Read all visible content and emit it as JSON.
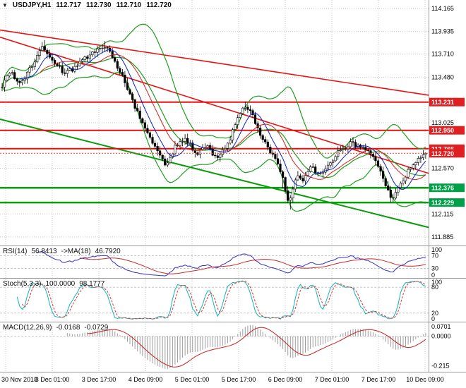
{
  "window": {
    "symbol_period": "USDJPY,H1",
    "ohlc": {
      "open": "112.717",
      "high": "112.730",
      "low": "112.710",
      "close": "112.720"
    }
  },
  "icons": {
    "symbol_dropdown": "▼"
  },
  "colors": {
    "grid": "#c9c9c9",
    "candle_up": "#ffffff",
    "candle_down": "#000000",
    "bollinger": "#1f9d1f",
    "ma_fast": "#0a23c4",
    "ma_slow": "#d02020",
    "trend_red": "#e51414",
    "trend_green": "#089c08",
    "level_red": "#e01010",
    "level_green": "#08a008",
    "current_price": "#f23c3c",
    "axis_box_red": "#e02020",
    "axis_box_green": "#00a048",
    "rsi_line": "#3030cc",
    "rsi_ma": "#cc2929",
    "stoch_k": "#0fb5b5",
    "stoch_d": "#e03030",
    "macd_hist": "#9c9c9c",
    "macd_signal": "#cc1f1f",
    "ind_level": "#c8c8c8",
    "separator": "#9a9a9a",
    "axis_text": "#000000"
  },
  "price_axis": {
    "min": 111.8,
    "max": 114.25,
    "labels": [
      {
        "text": "114.165",
        "price": 114.165,
        "box": null
      },
      {
        "text": "113.935",
        "price": 113.935,
        "box": null
      },
      {
        "text": "113.710",
        "price": 113.71,
        "box": null
      },
      {
        "text": "113.480",
        "price": 113.48,
        "box": null
      },
      {
        "text": "113.231",
        "price": 113.231,
        "box": "red"
      },
      {
        "text": "113.025",
        "price": 113.025,
        "box": null
      },
      {
        "text": "112.950",
        "price": 112.95,
        "box": "red"
      },
      {
        "text": "112.766",
        "price": 112.766,
        "box": "red"
      },
      {
        "text": "112.720",
        "price": 112.72,
        "box": "red"
      },
      {
        "text": "112.570",
        "price": 112.57,
        "box": null
      },
      {
        "text": "112.376",
        "price": 112.376,
        "box": "green"
      },
      {
        "text": "112.229",
        "price": 112.229,
        "box": "green"
      },
      {
        "text": "112.115",
        "price": 112.115,
        "box": null
      },
      {
        "text": "111.885",
        "price": 111.885,
        "box": null
      }
    ]
  },
  "time_axis": {
    "labels": [
      "30 Nov 2018",
      "3 Dec 01:00",
      "3 Dec 17:00",
      "4 Dec 09:00",
      "5 Dec 01:00",
      "5 Dec 17:00",
      "6 Dec 09:00",
      "7 Dec 01:00",
      "7 Dec 17:00",
      "10 Dec 09:00"
    ]
  },
  "chart_data": {
    "type": "candlestick",
    "symbol": "USDJPY",
    "timeframe": "H1",
    "x_range": {
      "start": "30 Nov 2018",
      "end": "10 Dec 09:00",
      "interval": "1 hour"
    },
    "y_range": [
      111.8,
      114.25
    ],
    "candle_count": 170,
    "last_close": 112.72,
    "price_path_anchors": [
      [
        0,
        113.38
      ],
      [
        4,
        113.52
      ],
      [
        8,
        113.42
      ],
      [
        12,
        113.58
      ],
      [
        17,
        113.8
      ],
      [
        21,
        113.62
      ],
      [
        26,
        113.52
      ],
      [
        31,
        113.6
      ],
      [
        36,
        113.72
      ],
      [
        41,
        113.8
      ],
      [
        45,
        113.68
      ],
      [
        49,
        113.46
      ],
      [
        53,
        113.22
      ],
      [
        58,
        112.96
      ],
      [
        62,
        112.78
      ],
      [
        66,
        112.58
      ],
      [
        70,
        112.8
      ],
      [
        74,
        112.86
      ],
      [
        78,
        112.72
      ],
      [
        82,
        112.8
      ],
      [
        86,
        112.68
      ],
      [
        90,
        112.78
      ],
      [
        94,
        113.02
      ],
      [
        97,
        113.18
      ],
      [
        100,
        113.12
      ],
      [
        103,
        112.95
      ],
      [
        106,
        112.8
      ],
      [
        109,
        112.7
      ],
      [
        112,
        112.52
      ],
      [
        115,
        112.22
      ],
      [
        118,
        112.5
      ],
      [
        121,
        112.45
      ],
      [
        124,
        112.58
      ],
      [
        127,
        112.5
      ],
      [
        130,
        112.6
      ],
      [
        133,
        112.68
      ],
      [
        136,
        112.76
      ],
      [
        140,
        112.82
      ],
      [
        144,
        112.78
      ],
      [
        147,
        112.72
      ],
      [
        150,
        112.66
      ],
      [
        153,
        112.42
      ],
      [
        156,
        112.27
      ],
      [
        159,
        112.38
      ],
      [
        162,
        112.52
      ],
      [
        165,
        112.62
      ],
      [
        169,
        112.72
      ]
    ],
    "wick_extremes": [
      {
        "i": 17,
        "high": 113.85
      },
      {
        "i": 41,
        "high": 113.84
      },
      {
        "i": 97,
        "high": 113.235
      },
      {
        "i": 112,
        "low": 112.37
      },
      {
        "i": 115,
        "low": 112.16
      },
      {
        "i": 156,
        "low": 112.235
      }
    ],
    "horizontal_levels": {
      "resistance": [
        113.231,
        112.95,
        112.766
      ],
      "support": [
        112.376,
        112.229
      ]
    },
    "trend_lines": [
      {
        "color": "red",
        "from": {
          "t": 0,
          "price": 113.95
        },
        "to": {
          "t": 1,
          "price": 113.3
        }
      },
      {
        "color": "red",
        "from": {
          "t": 0,
          "price": 113.88
        },
        "to": {
          "t": 1,
          "price": 112.52
        }
      },
      {
        "color": "green",
        "from": {
          "t": 0,
          "price": 113.06
        },
        "to": {
          "t": 1,
          "price": 111.98
        }
      }
    ],
    "overlays": {
      "bollinger_period": 20,
      "bollinger_deviation": 2,
      "ma_fast_period": 8,
      "ma_slow_period": 16
    }
  },
  "indicators": {
    "rsi": {
      "name": "RSI(14)",
      "value": "56.8413",
      "ma_name": "->MA(18)",
      "ma_value": "46.7920",
      "levels": [
        70,
        30
      ],
      "scale": [
        "100",
        "70",
        "30",
        "0"
      ]
    },
    "stoch": {
      "name": "Stoch(5,3,3)",
      "value": "100.0000",
      "signal": "98.1777",
      "levels": [
        80,
        20
      ],
      "scale": [
        "100",
        "80",
        "20",
        "0"
      ]
    },
    "macd": {
      "name": "MACD(12,26,9)",
      "value": "-0.0168",
      "signal": "-0.0729",
      "scale": [
        "0.0701",
        "0.0000",
        "-0.215"
      ]
    }
  }
}
